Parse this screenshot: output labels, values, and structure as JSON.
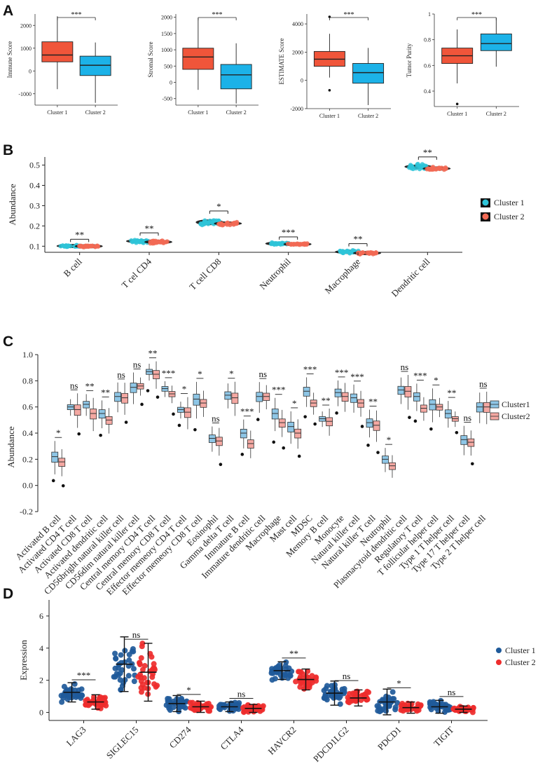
{
  "panels": {
    "A": "A",
    "B": "B",
    "C": "C",
    "D": "D"
  },
  "colors": {
    "a_cluster1": "#f0553a",
    "a_cluster2": "#1cb2e8",
    "b_cluster1": "#2ec4d8",
    "b_cluster2": "#f26a55",
    "c_cluster1": "#8ec6e6",
    "c_cluster2": "#f4a8a2",
    "d_cluster1": "#1f5a9a",
    "d_cluster2": "#ee2c2c"
  },
  "chart_data": [
    {
      "type": "box",
      "panel": "A",
      "title": "",
      "ylabel": "Immune Score",
      "ylim": [
        -1500,
        2500
      ],
      "yticks": [
        -1000,
        0,
        1000,
        2000
      ],
      "categories": [
        "Cluster 1",
        "Cluster 2"
      ],
      "boxes": [
        {
          "min": -800,
          "q1": 400,
          "median": 700,
          "q3": 1280,
          "max": 2400,
          "outliers": []
        },
        {
          "min": -1400,
          "q1": -200,
          "median": 250,
          "q3": 650,
          "max": 1250,
          "outliers": []
        }
      ],
      "significance": "***"
    },
    {
      "type": "box",
      "panel": "A",
      "title": "",
      "ylabel": "Stromal Score",
      "ylim": [
        -700,
        2100
      ],
      "yticks": [
        -500,
        0,
        500,
        1000,
        1500,
        2000
      ],
      "categories": [
        "Cluster 1",
        "Cluster 2"
      ],
      "boxes": [
        {
          "min": -230,
          "q1": 400,
          "median": 780,
          "q3": 1050,
          "max": 1980,
          "outliers": []
        },
        {
          "min": -650,
          "q1": -200,
          "median": 230,
          "q3": 550,
          "max": 1200,
          "outliers": []
        }
      ],
      "significance": "***"
    },
    {
      "type": "box",
      "panel": "A",
      "title": "",
      "ylabel": "ESTIMATE Score",
      "ylim": [
        -2000,
        4700
      ],
      "yticks": [
        -2000,
        0,
        2000,
        4000
      ],
      "categories": [
        "Cluster 1",
        "Cluster 2"
      ],
      "boxes": [
        {
          "min": 200,
          "q1": 1000,
          "median": 1500,
          "q3": 2050,
          "max": 3300,
          "outliers": [
            4500,
            -700
          ]
        },
        {
          "min": -1750,
          "q1": -200,
          "median": 550,
          "q3": 1200,
          "max": 2300,
          "outliers": []
        }
      ],
      "significance": "***"
    },
    {
      "type": "box",
      "panel": "A",
      "title": "",
      "ylabel": "Tumor Purity",
      "ylim": [
        0.28,
        1.0
      ],
      "yticks": [
        0.4,
        0.6,
        0.8,
        1.0
      ],
      "categories": [
        "Cluster 1",
        "Cluster 2"
      ],
      "boxes": [
        {
          "min": 0.46,
          "q1": 0.615,
          "median": 0.675,
          "q3": 0.735,
          "max": 0.88,
          "outliers": [
            0.3
          ]
        },
        {
          "min": 0.59,
          "q1": 0.715,
          "median": 0.77,
          "q3": 0.845,
          "max": 0.97,
          "outliers": []
        }
      ],
      "significance": "***"
    },
    {
      "type": "violin_dot",
      "panel": "B",
      "ylabel": "Abundance",
      "ylim": [
        0.07,
        0.54
      ],
      "yticks": [
        0.1,
        0.2,
        0.3,
        0.4,
        0.5
      ],
      "categories": [
        "B cell",
        "T cel CD4",
        "T cell CD8",
        "Neutrophil",
        "Macrophage",
        "Dendritic cell"
      ],
      "legend": [
        "Cluster 1",
        "Cluster 2"
      ],
      "series": [
        {
          "name": "Cluster 1",
          "medians": [
            0.101,
            0.125,
            0.218,
            0.113,
            0.072,
            0.492
          ],
          "spread": [
            0.005,
            0.008,
            0.014,
            0.005,
            0.008,
            0.011
          ]
        },
        {
          "name": "Cluster 2",
          "medians": [
            0.1,
            0.121,
            0.212,
            0.11,
            0.066,
            0.483
          ],
          "spread": [
            0.004,
            0.007,
            0.01,
            0.004,
            0.005,
            0.009
          ]
        }
      ],
      "significance": [
        "**",
        "**",
        "*",
        "***",
        "**",
        "**"
      ]
    },
    {
      "type": "box",
      "panel": "C",
      "ylabel": "Abundance",
      "ylim": [
        -0.2,
        1.0
      ],
      "yticks": [
        -0.2,
        0.0,
        0.2,
        0.4,
        0.6,
        0.8,
        1.0
      ],
      "legend": [
        "Cluster1",
        "Cluster2"
      ],
      "categories": [
        "Activated B cell",
        "Activated CD4 T cell",
        "Activated CD8 T cell",
        "Activated dendritic cell",
        "CD56bright natural killer cell",
        "CD56dim natural killer cell",
        "Central memory CD4 T cell",
        "Central memory CD8 T cell",
        "Effector memeory CD4 T cell",
        "Effector memeory CD8 T cell",
        "Eosinophil",
        "Gamma delta T cell",
        "Immature B cell",
        "Immature dendritic cell",
        "Macrophage",
        "Mast cell",
        "MDSC",
        "Memory B cell",
        "Monocyte",
        "Natural killer cell",
        "Natural killer T cell",
        "Neutrophil",
        "Plasmacytoid dendritic cell",
        "Regulatory T cell",
        "T follicular helper cell",
        "Type 1 T helper cell",
        "Type 17 T helper cell",
        "Type 2 T helper cell"
      ],
      "series": [
        {
          "name": "Cluster1",
          "medians": [
            0.22,
            0.6,
            0.62,
            0.55,
            0.68,
            0.75,
            0.87,
            0.74,
            0.58,
            0.66,
            0.36,
            0.69,
            0.4,
            0.68,
            0.55,
            0.45,
            0.72,
            0.51,
            0.71,
            0.67,
            0.48,
            0.2,
            0.73,
            0.68,
            0.62,
            0.55,
            0.35,
            0.6
          ]
        },
        {
          "name": "Cluster2",
          "medians": [
            0.18,
            0.58,
            0.55,
            0.5,
            0.67,
            0.76,
            0.85,
            0.7,
            0.56,
            0.63,
            0.34,
            0.67,
            0.32,
            0.68,
            0.48,
            0.4,
            0.63,
            0.49,
            0.68,
            0.63,
            0.46,
            0.15,
            0.72,
            0.59,
            0.6,
            0.51,
            0.33,
            0.6
          ]
        }
      ],
      "significance": [
        "*",
        "ns",
        "**",
        "**",
        "ns",
        "ns",
        "**",
        "***",
        "*",
        "*",
        "ns",
        "*",
        "***",
        "ns",
        "***",
        "*",
        "***",
        "**",
        "***",
        "***",
        "**",
        "*",
        "ns",
        "***",
        "*",
        "**",
        "ns",
        "ns"
      ]
    },
    {
      "type": "scatter_dot",
      "panel": "D",
      "ylabel": "Expression",
      "ylim": [
        -0.5,
        7.0
      ],
      "yticks": [
        0,
        2,
        4,
        6
      ],
      "categories": [
        "LAG3",
        "SIGLEC15",
        "CD274",
        "CTLA4",
        "HAVCR2",
        "PDCD1LG2",
        "PDCD1",
        "TIGIT"
      ],
      "legend": [
        "Cluster 1",
        "Cluster 2"
      ],
      "series": [
        {
          "name": "Cluster 1",
          "means": [
            1.25,
            3.0,
            0.55,
            0.35,
            2.6,
            1.2,
            0.65,
            0.35
          ],
          "sd": [
            0.6,
            1.7,
            0.5,
            0.3,
            0.55,
            0.75,
            0.8,
            0.4
          ]
        },
        {
          "name": "Cluster 2",
          "means": [
            0.65,
            2.5,
            0.35,
            0.25,
            2.05,
            0.9,
            0.3,
            0.2
          ],
          "sd": [
            0.45,
            1.8,
            0.35,
            0.25,
            0.65,
            0.5,
            0.35,
            0.2
          ]
        }
      ],
      "significance": [
        "***",
        "ns",
        "*",
        "ns",
        "**",
        "ns",
        "*",
        "ns"
      ]
    }
  ]
}
